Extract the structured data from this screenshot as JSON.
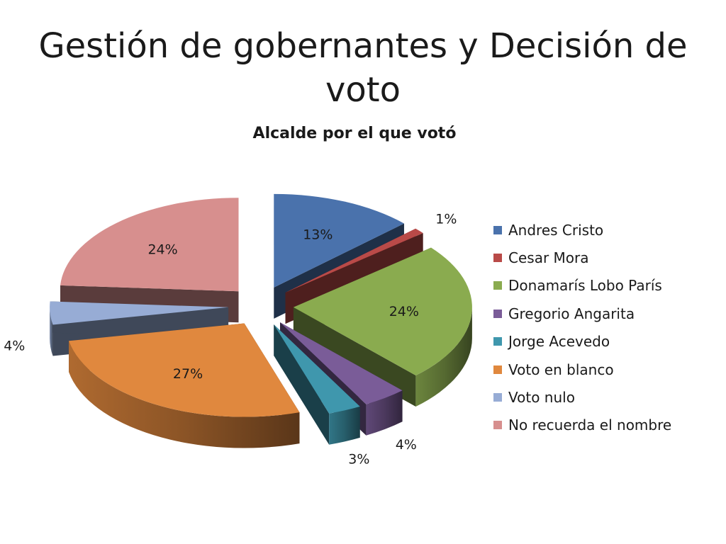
{
  "slide": {
    "title": "Gestión de gobernantes y Decisión de voto"
  },
  "chart_data": {
    "type": "pie",
    "title": "Alcalde por el que votó",
    "categories": [
      "Andres Cristo",
      "Cesar Mora",
      "Donamarís Lobo París",
      "Gregorio Angarita",
      "Jorge Acevedo",
      "Voto en blanco",
      "Voto nulo",
      "No recuerda el nombre"
    ],
    "values": [
      13,
      1,
      24,
      4,
      3,
      27,
      4,
      24
    ],
    "labels": [
      "13%",
      "1%",
      "24%",
      "4%",
      "3%",
      "27%",
      "4%",
      "24%"
    ],
    "colors": [
      "#4a72ac",
      "#b94a48",
      "#8aab4f",
      "#7a5c98",
      "#3f97ad",
      "#e0883e",
      "#97acd5",
      "#d78f8e"
    ],
    "exploded": true,
    "three_d": true,
    "legend_position": "right"
  }
}
